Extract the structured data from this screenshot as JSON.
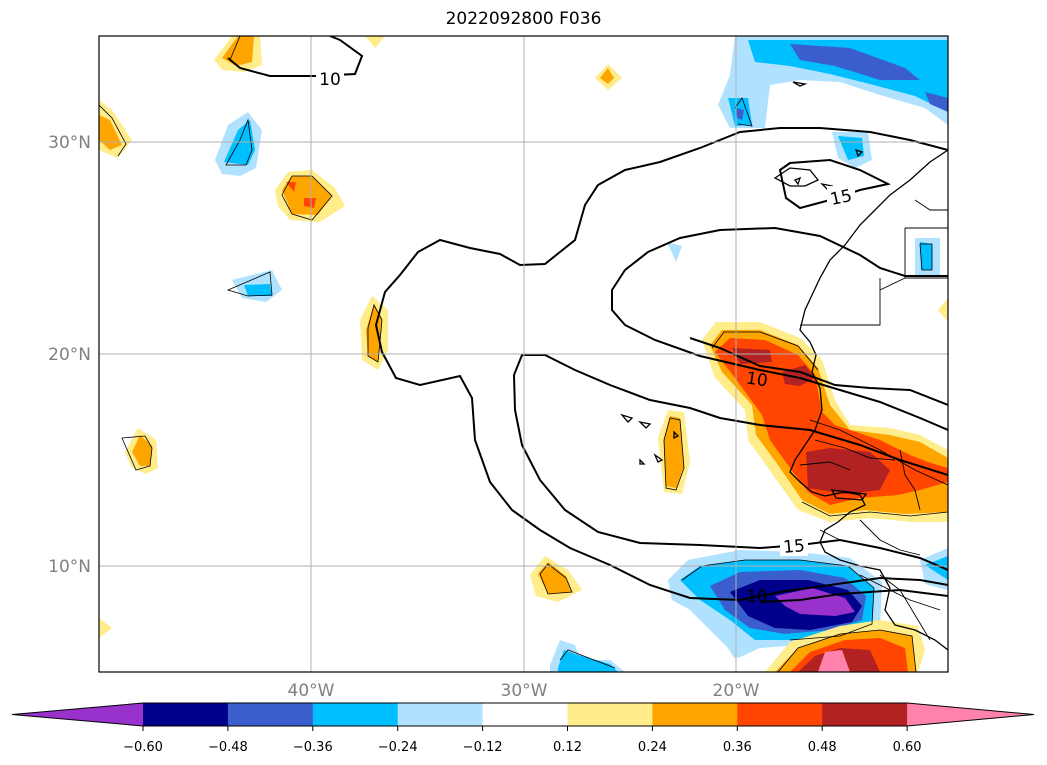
{
  "title": "2022092800 F036",
  "lat_labels": [
    "30°N",
    "20°N",
    "10°N"
  ],
  "lon_labels": [
    "40°W",
    "30°W",
    "20°W"
  ],
  "contour_labels": [
    "10",
    "15",
    "10",
    "15",
    "10"
  ],
  "colorbar": {
    "ticks": [
      "−0.60",
      "−0.48",
      "−0.36",
      "−0.24",
      "−0.12",
      "0.12",
      "0.24",
      "0.36",
      "0.48",
      "0.60"
    ],
    "colors": [
      "#9932cc",
      "#00008b",
      "#3a5fcd",
      "#00bfff",
      "#b0e2ff",
      "#ffffff",
      "#ffec8b",
      "#ffa500",
      "#ff4500",
      "#b22222",
      "#ff82ab"
    ]
  },
  "colors": {
    "light_blue": "#b0e2ff",
    "sky_blue": "#00bfff",
    "royal_blue": "#3a5fcd",
    "navy": "#00008b",
    "purple": "#9932cc",
    "light_yellow": "#ffec8b",
    "orange": "#ffa500",
    "red_orange": "#ff4500",
    "dark_red": "#b22222",
    "pink": "#ff82ab",
    "grid": "#b0b0b0"
  }
}
